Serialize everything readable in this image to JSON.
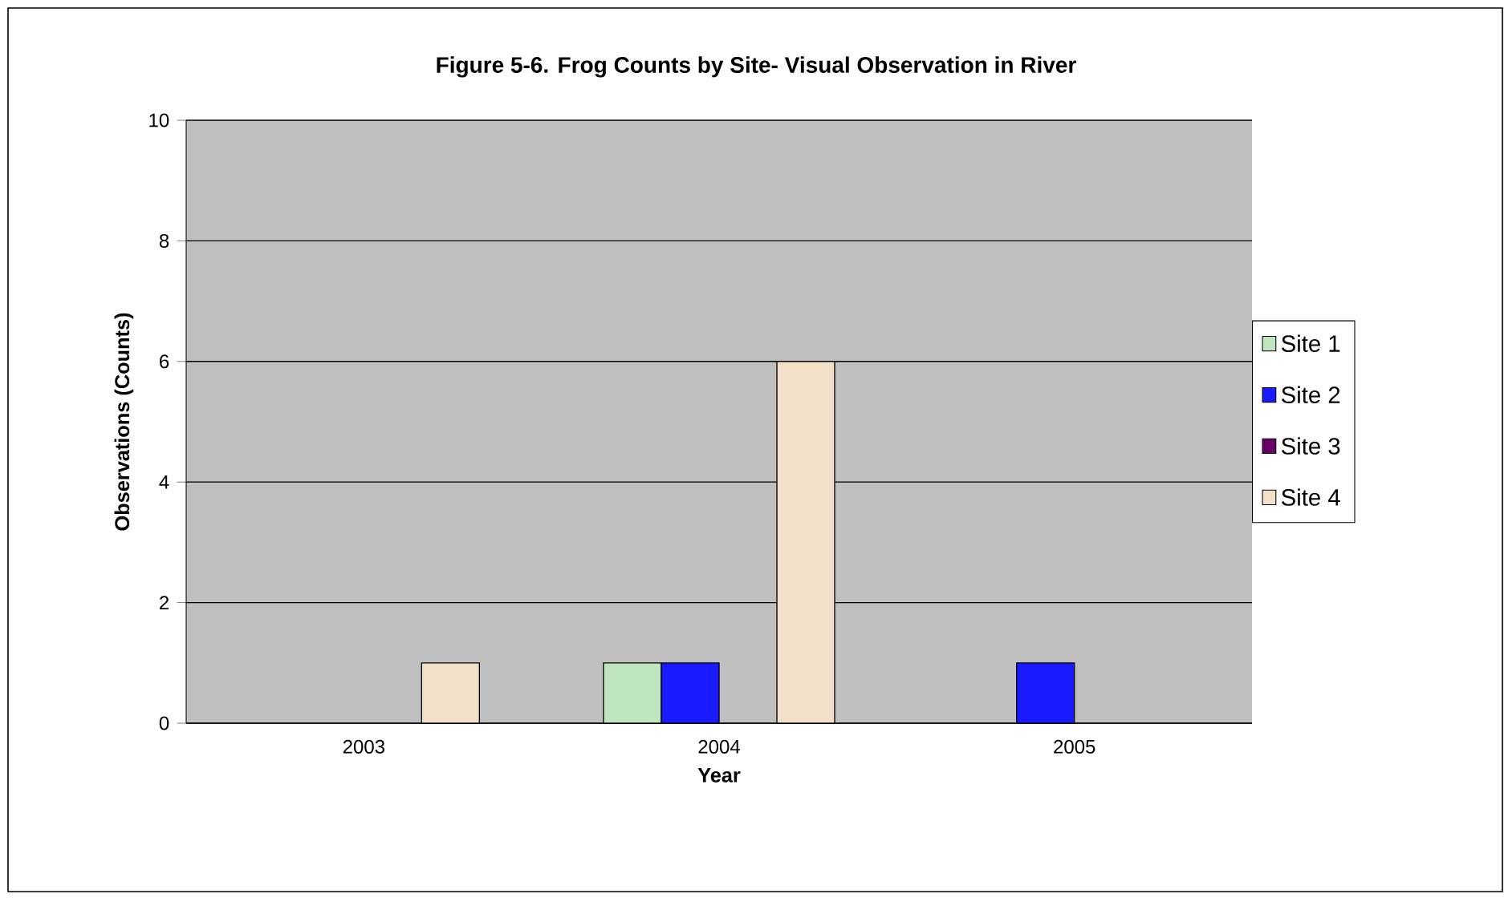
{
  "chart_data": {
    "type": "bar",
    "title": "Figure 5-6.  Frog Counts by Site- Visual Observation in River",
    "xlabel": "Year",
    "ylabel": "Observations (Counts)",
    "categories": [
      "2003",
      "2004",
      "2005"
    ],
    "series": [
      {
        "name": "Site 1",
        "color": "#c0e6c0",
        "values": [
          0,
          1,
          0
        ]
      },
      {
        "name": "Site 2",
        "color": "#1a1aff",
        "values": [
          0,
          1,
          1
        ]
      },
      {
        "name": "Site 3",
        "color": "#660066",
        "values": [
          0,
          0,
          0
        ]
      },
      {
        "name": "Site 4",
        "color": "#f2e0c8",
        "values": [
          1,
          6,
          0
        ]
      }
    ],
    "ylim": [
      0,
      10
    ],
    "yticks": [
      0,
      2,
      4,
      6,
      8,
      10
    ],
    "grid": "y",
    "legend": "right"
  }
}
